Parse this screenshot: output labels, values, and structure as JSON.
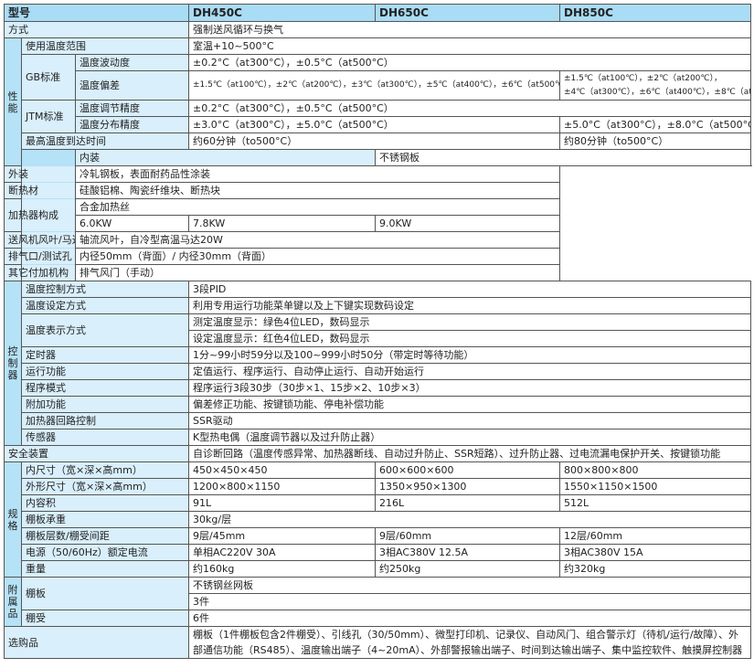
{
  "header": {
    "label": "型号",
    "models": [
      "DH450C",
      "DH650C",
      "DH850C"
    ]
  },
  "method": {
    "label": "方式",
    "value": "强制送风循环与换气"
  },
  "performance": {
    "group": "性能",
    "range": {
      "label": "使用温度范围",
      "value": "室温+10~500°C"
    },
    "gb": "GB标准",
    "fluct": {
      "label": "温度波动度",
      "value": "±0.2°C（at300°C），±0.5°C（at500°C）"
    },
    "dev": {
      "label": "温度偏差",
      "value12": "±1.5℃（at100℃），±2℃（at200℃），±3℃（at300℃），±5℃（at400℃），±6℃（at500℃）",
      "value3a": "±1.5℃（at100℃），±2℃（at200℃），",
      "value3b": "±4℃（at300℃），±6℃（at400℃），±8℃（at500℃）"
    },
    "jtm": "JTM标准",
    "adj": {
      "label": "温度调节精度",
      "value": "±0.2°C（at300°C），±0.5°C（at500°C）"
    },
    "dist": {
      "label": "温度分布精度",
      "value12": "±3.0°C（at300°C），±5.0°C（at500°C）",
      "value3": "±5.0°C（at300°C），±8.0°C（at500°C）"
    },
    "maxtime": {
      "label": "最高温度到达时间",
      "value12": "约60分钟（to500°C）",
      "value3": "约80分钟（to500°C）"
    }
  },
  "construction": {
    "group": "构成",
    "inner": {
      "label": "内装",
      "value": "不锈钢板"
    },
    "outer": {
      "label": "外装",
      "value": "冷轧钢板，表面耐药品性涂装"
    },
    "insul": {
      "label": "断热材",
      "value": "硅酸铝棉、陶瓷纤维块、断热块"
    },
    "heater": {
      "label": "加热器",
      "value": "合金加热丝",
      "powers": [
        "6.0KW",
        "7.8KW",
        "9.0KW"
      ]
    },
    "fan": {
      "label": "送风机风叶/马达",
      "value": "轴流风叶，自冷型高温马达20W"
    },
    "exhaust": {
      "label": "排气口/测试孔",
      "value": "内径50mm（背面）/ 内径30mm（背面）"
    },
    "other": {
      "label": "其它付加机构",
      "value": "排气风门（手动）"
    }
  },
  "controller": {
    "group": "控制器",
    "rows": [
      {
        "label": "温度控制方式",
        "value": "3段PID"
      },
      {
        "label": "温度设定方式",
        "value": "利用专用运行功能菜单键以及上下键实现数码设定"
      },
      {
        "label": "温度表示方式",
        "value": "测定温度显示：绿色4位LED，数码显示",
        "value2": "设定温度显示：红色4位LED，数码显示"
      },
      {
        "label": "定时器",
        "value": "1分~99小时59分以及100~999小时50分（带定时等待功能）"
      },
      {
        "label": "运行功能",
        "value": "定值运行、程序运行、自动停止运行、自动开始运行"
      },
      {
        "label": "程序模式",
        "value": "程序运行3段30步（30步×1、15步×2、10步×3）"
      },
      {
        "label": "附加功能",
        "value": "偏差修正功能、按键锁功能、停电补偿功能"
      },
      {
        "label": "加热器回路控制",
        "value": "SSR驱动"
      },
      {
        "label": "传感器",
        "value": "K型热电偶（温度调节器以及过升防止器）"
      }
    ]
  },
  "safety": {
    "label": "安全装置",
    "value": "自诊断回路（温度传感异常、加热器断线、自动过升防止、SSR短路）、过升防止器、过电流漏电保护开关、按键锁功能"
  },
  "spec": {
    "group": "规格",
    "inner": {
      "label": "内尺寸（宽×深×高mm）",
      "values": [
        "450×450×450",
        "600×600×600",
        "800×800×800"
      ]
    },
    "outer": {
      "label": "外形尺寸（宽×深×高mm）",
      "values": [
        "1200×800×1150",
        "1350×950×1300",
        "1550×1150×1500"
      ]
    },
    "volume": {
      "label": "内容积",
      "values": [
        "91L",
        "216L",
        "512L"
      ]
    },
    "load": {
      "label": "棚板承重",
      "value": "30kg/层"
    },
    "shelves": {
      "label": "棚板层数/棚受间距",
      "values": [
        "9层/45mm",
        "9层/60mm",
        "12层/60mm"
      ]
    },
    "power": {
      "label": "电源（50/60Hz）额定电流",
      "values": [
        "单相AC220V 30A",
        "3相AC380V 12.5A",
        "3相AC380V 15A"
      ]
    },
    "weight": {
      "label": "重量",
      "values": [
        "约160kg",
        "约250kg",
        "约320kg"
      ]
    }
  },
  "accessories": {
    "group": "附属品",
    "shelf": {
      "label": "棚板",
      "value": "不锈钢丝网板",
      "qty": "3件"
    },
    "bracket": {
      "label": "棚受",
      "value": "6件"
    }
  },
  "options": {
    "label": "选购品",
    "value": "棚板（1件棚板包含2件棚受）、引线孔（30/50mm）、微型打印机、记录仪、自动风门、组合警示灯（待机/运行/故障）、外部通信功能（RS485）、温度输出端子（4~20mA）、外部警报输出端子、时间到达输出端子、集中监控软件、触摸屏控制器"
  }
}
